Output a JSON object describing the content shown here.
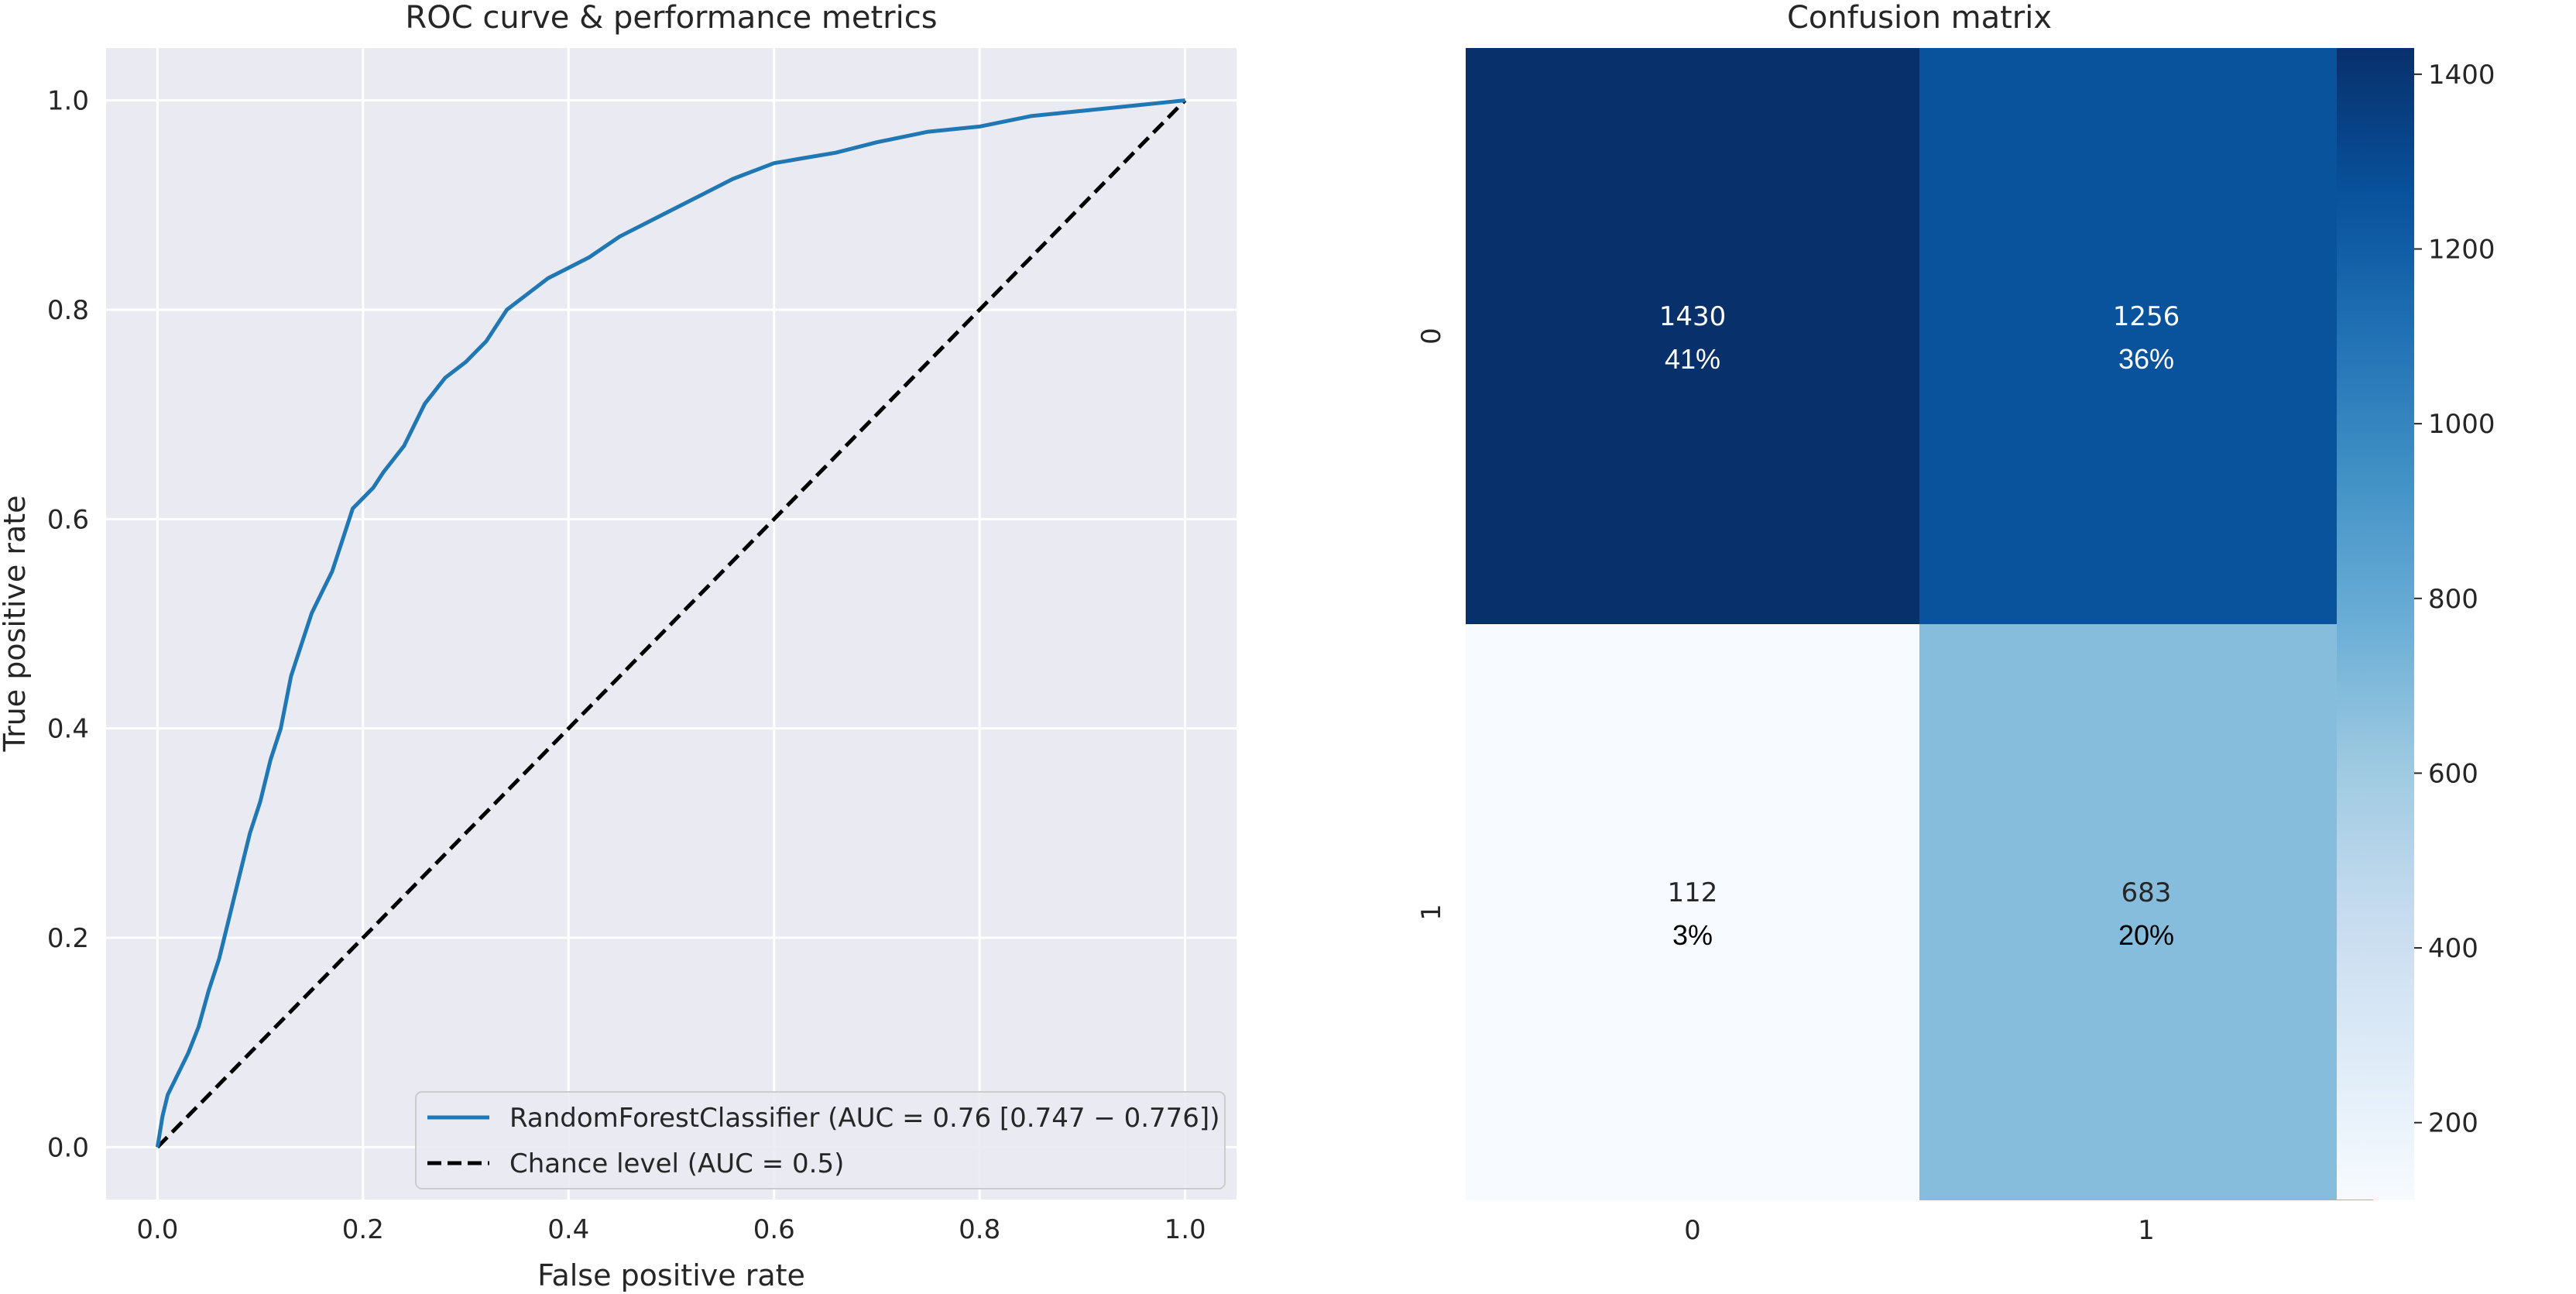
{
  "chart_data": [
    {
      "type": "line",
      "title": "ROC curve & performance metrics",
      "xlabel": "False positive rate",
      "ylabel": "True positive rate",
      "xlim": [
        -0.05,
        1.05
      ],
      "ylim": [
        -0.05,
        1.05
      ],
      "xticks": [
        "0.0",
        "0.2",
        "0.4",
        "0.6",
        "0.8",
        "1.0"
      ],
      "yticks": [
        "0.0",
        "0.2",
        "0.4",
        "0.6",
        "0.8",
        "1.0"
      ],
      "grid": true,
      "legend_position": "lower-right",
      "series": [
        {
          "name": "RandomForestClassifier (AUC = 0.76 [0.747 − 0.776])",
          "color": "#1f77b4",
          "style": "solid",
          "x": [
            0.0,
            0.005,
            0.01,
            0.02,
            0.03,
            0.04,
            0.05,
            0.06,
            0.07,
            0.08,
            0.09,
            0.1,
            0.11,
            0.12,
            0.13,
            0.14,
            0.15,
            0.16,
            0.17,
            0.18,
            0.19,
            0.2,
            0.21,
            0.22,
            0.24,
            0.26,
            0.28,
            0.3,
            0.32,
            0.34,
            0.36,
            0.38,
            0.4,
            0.42,
            0.45,
            0.48,
            0.5,
            0.53,
            0.56,
            0.6,
            0.63,
            0.66,
            0.7,
            0.75,
            0.8,
            0.85,
            0.9,
            0.95,
            1.0
          ],
          "y": [
            0.0,
            0.03,
            0.05,
            0.07,
            0.09,
            0.115,
            0.15,
            0.18,
            0.22,
            0.26,
            0.3,
            0.33,
            0.37,
            0.4,
            0.45,
            0.48,
            0.51,
            0.53,
            0.55,
            0.58,
            0.61,
            0.62,
            0.63,
            0.645,
            0.67,
            0.71,
            0.735,
            0.75,
            0.77,
            0.8,
            0.815,
            0.83,
            0.84,
            0.85,
            0.87,
            0.885,
            0.895,
            0.91,
            0.925,
            0.94,
            0.945,
            0.95,
            0.96,
            0.97,
            0.975,
            0.985,
            0.99,
            0.995,
            1.0
          ]
        },
        {
          "name": "Chance level (AUC = 0.5)",
          "color": "#000000",
          "style": "dashed",
          "x": [
            0.0,
            1.0
          ],
          "y": [
            0.0,
            1.0
          ]
        }
      ]
    },
    {
      "type": "heatmap",
      "title": "Confusion matrix",
      "row_labels": [
        "0",
        "1"
      ],
      "col_labels": [
        "0",
        "1"
      ],
      "values": [
        [
          1430,
          1256
        ],
        [
          112,
          683
        ]
      ],
      "percent_labels": [
        [
          "41%",
          "36%"
        ],
        [
          "3%",
          "20%"
        ]
      ],
      "colorbar": {
        "min": 112,
        "max": 1430,
        "ticks": [
          "200",
          "400",
          "600",
          "800",
          "1000",
          "1200",
          "1400"
        ],
        "tick_values": [
          200,
          400,
          600,
          800,
          1000,
          1200,
          1400
        ],
        "colors": [
          "#f7fbff",
          "#deebf7",
          "#c6dbef",
          "#9ecae1",
          "#6baed6",
          "#4292c6",
          "#2171b5",
          "#08519c",
          "#08306b"
        ]
      }
    }
  ]
}
